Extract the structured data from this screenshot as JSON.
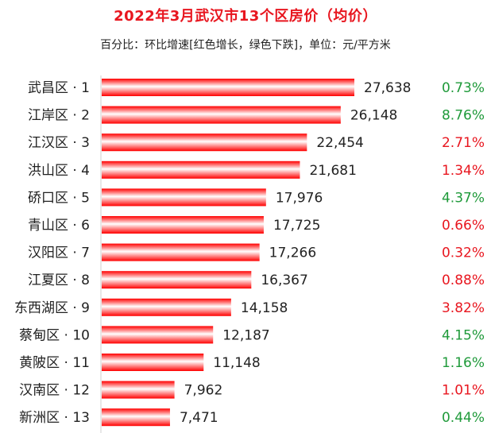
{
  "chart_data": {
    "type": "bar",
    "orientation": "horizontal",
    "title": "2022年3月武汉市13个区房价（均价）",
    "subtitle": "百分比：环比增速[红色增长，绿色下跌]，单位：元/平方米",
    "categories": [
      "武昌区 · 1",
      "江岸区 · 2",
      "江汉区 · 3",
      "洪山区 · 4",
      "硚口区 · 5",
      "青山区 · 6",
      "汉阳区 · 7",
      "江夏区 · 8",
      "东西湖区 · 9",
      "蔡甸区 · 10",
      "黄陂区 · 11",
      "汉南区 · 12",
      "新洲区 · 13"
    ],
    "values": [
      27638,
      26148,
      22454,
      21681,
      17976,
      17725,
      17266,
      16367,
      14158,
      12187,
      11148,
      7962,
      7471
    ],
    "value_labels": [
      "27,638",
      "26,148",
      "22,454",
      "21,681",
      "17,976",
      "17,725",
      "17,266",
      "16,367",
      "14,158",
      "12,187",
      "11,148",
      "7,962",
      "7,471"
    ],
    "changes": [
      "0.73%",
      "8.76%",
      "2.71%",
      "1.34%",
      "4.37%",
      "0.66%",
      "0.32%",
      "0.88%",
      "3.82%",
      "4.15%",
      "1.16%",
      "1.01%",
      "0.44%"
    ],
    "change_direction": [
      "down",
      "down",
      "up",
      "up",
      "down",
      "up",
      "up",
      "up",
      "up",
      "down",
      "down",
      "up",
      "down"
    ],
    "colors": {
      "up": "#e8161f",
      "down": "#1f9a3a",
      "bar": "#ff0000",
      "bar_highlight": "#ffffff"
    },
    "xlim": [
      0,
      27638
    ]
  }
}
